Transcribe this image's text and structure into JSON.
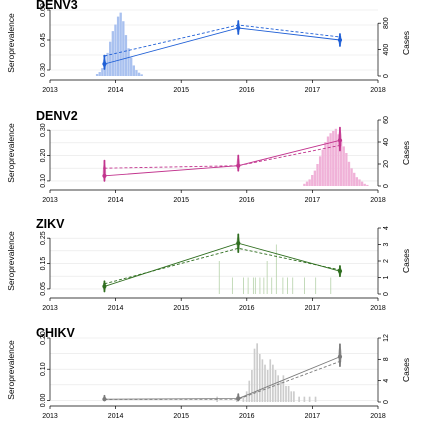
{
  "chart_data": [
    {
      "type": "line",
      "title": "DENV3",
      "ylabel": "Seroprevalence",
      "y2label": "Cases",
      "xlim": [
        2013,
        2018
      ],
      "xticks": [
        2013,
        2014,
        2015,
        2016,
        2017,
        2018
      ],
      "ylim": [
        0.27,
        0.6
      ],
      "yticks": [
        0.3,
        0.45,
        0.6
      ],
      "ytick_labels": [
        "0.30",
        "0.45",
        "0.60"
      ],
      "y2lim": [
        0,
        1000
      ],
      "y2ticks": [
        0,
        400,
        800
      ],
      "color": "#1f5fd6",
      "hist_color": "#a9c1ef",
      "grid": true,
      "series": [
        {
          "style": "solid",
          "x": [
            2013.83,
            2015.87,
            2017.42
          ],
          "y": [
            0.33,
            0.51,
            0.45
          ],
          "lower": [
            0.305,
            0.48,
            0.42
          ],
          "upper": [
            0.365,
            0.545,
            0.48
          ]
        },
        {
          "style": "dashed",
          "x": [
            2013.83,
            2015.87,
            2017.42
          ],
          "y": [
            0.37,
            0.525,
            0.465
          ]
        }
      ],
      "cases": {
        "bin_width": 0.04,
        "x": [
          2013.72,
          2013.76,
          2013.8,
          2013.84,
          2013.88,
          2013.92,
          2013.96,
          2014.0,
          2014.04,
          2014.08,
          2014.12,
          2014.16,
          2014.2,
          2014.24,
          2014.28,
          2014.32,
          2014.36,
          2014.4
        ],
        "y": [
          30,
          60,
          120,
          220,
          350,
          520,
          680,
          780,
          900,
          960,
          830,
          620,
          420,
          280,
          160,
          90,
          50,
          25
        ]
      }
    },
    {
      "type": "line",
      "title": "DENV2",
      "ylabel": "Seroprevalence",
      "y2label": "Cases",
      "xlim": [
        2013,
        2018
      ],
      "xticks": [
        2013,
        2014,
        2015,
        2016,
        2017,
        2018
      ],
      "ylim": [
        0.08,
        0.34
      ],
      "yticks": [
        0.1,
        0.2,
        0.3
      ],
      "ytick_labels": [
        "0.10",
        "0.20",
        "0.30"
      ],
      "y2lim": [
        0,
        60
      ],
      "y2ticks": [
        0,
        20,
        40,
        60
      ],
      "color": "#c2348e",
      "hist_color": "#f0b2d8",
      "grid": true,
      "series": [
        {
          "style": "solid",
          "x": [
            2013.83,
            2015.87,
            2017.42
          ],
          "y": [
            0.12,
            0.16,
            0.26
          ],
          "lower": [
            0.1,
            0.14,
            0.22
          ],
          "upper": [
            0.18,
            0.2,
            0.31
          ]
        },
        {
          "style": "dashed",
          "x": [
            2013.83,
            2015.87,
            2017.42
          ],
          "y": [
            0.15,
            0.16,
            0.24
          ]
        }
      ],
      "cases": {
        "bin_width": 0.04,
        "x": [
          2016.88,
          2016.92,
          2016.96,
          2017.0,
          2017.04,
          2017.08,
          2017.12,
          2017.16,
          2017.2,
          2017.24,
          2017.28,
          2017.32,
          2017.36,
          2017.4,
          2017.44,
          2017.48,
          2017.52,
          2017.56,
          2017.6,
          2017.64,
          2017.68,
          2017.72,
          2017.76,
          2017.8,
          2017.84
        ],
        "y": [
          2,
          4,
          6,
          10,
          14,
          20,
          27,
          33,
          40,
          45,
          48,
          50,
          52,
          47,
          42,
          36,
          30,
          22,
          16,
          12,
          8,
          6,
          4,
          2,
          1
        ]
      }
    },
    {
      "type": "line",
      "title": "ZIKV",
      "ylabel": "Seroprevalence",
      "y2label": "Cases",
      "xlim": [
        2013,
        2018
      ],
      "xticks": [
        2013,
        2014,
        2015,
        2016,
        2017,
        2018
      ],
      "ylim": [
        0.03,
        0.29
      ],
      "yticks": [
        0.05,
        0.15,
        0.25
      ],
      "ytick_labels": [
        "0.05",
        "0.15",
        "0.25"
      ],
      "y2lim": [
        0,
        4
      ],
      "y2ticks": [
        0,
        1,
        2,
        3,
        4
      ],
      "color": "#2f6e1f",
      "hist_color": "#b5d1a9",
      "grid": true,
      "series": [
        {
          "style": "solid",
          "x": [
            2013.83,
            2015.87,
            2017.42
          ],
          "y": [
            0.06,
            0.23,
            0.12
          ],
          "lower": [
            0.04,
            0.195,
            0.1
          ],
          "upper": [
            0.08,
            0.265,
            0.14
          ]
        },
        {
          "style": "dashed",
          "x": [
            2013.83,
            2015.87,
            2017.42
          ],
          "y": [
            0.07,
            0.21,
            0.125
          ]
        }
      ],
      "cases": {
        "bin_width": 0.012,
        "x": [
          2015.58,
          2015.78,
          2015.95,
          2016.02,
          2016.1,
          2016.13,
          2016.2,
          2016.26,
          2016.31,
          2016.38,
          2016.45,
          2016.55,
          2016.62,
          2016.7,
          2016.88,
          2017.05,
          2017.28
        ],
        "y": [
          2,
          1,
          1,
          1,
          1,
          1,
          1,
          1,
          2,
          1,
          3,
          1,
          1,
          1,
          1,
          1,
          1
        ]
      }
    },
    {
      "type": "line",
      "title": "CHIKV",
      "ylabel": "Seroprevalence",
      "y2label": "Cases",
      "xlim": [
        2013,
        2018
      ],
      "xticks": [
        2013,
        2014,
        2015,
        2016,
        2017,
        2018
      ],
      "ylim": [
        -0.005,
        0.2
      ],
      "yticks": [
        0.0,
        0.1,
        0.2
      ],
      "ytick_labels": [
        "0.00",
        "0.10",
        "0.20"
      ],
      "y2lim": [
        0,
        12
      ],
      "y2ticks": [
        0,
        4,
        8,
        12
      ],
      "color": "#7a7a7a",
      "hist_color": "#cccccc",
      "grid": true,
      "series": [
        {
          "style": "solid",
          "x": [
            2013.83,
            2015.87,
            2017.42
          ],
          "y": [
            0.004,
            0.006,
            0.14
          ],
          "lower": [
            0.0,
            0.0,
            0.11
          ],
          "upper": [
            0.015,
            0.02,
            0.18
          ]
        },
        {
          "style": "dashed",
          "x": [
            2013.83,
            2015.87,
            2017.42
          ],
          "y": [
            0.003,
            0.004,
            0.125
          ]
        }
      ],
      "cases": {
        "bin_width": 0.03,
        "x": [
          2015.55,
          2015.85,
          2015.95,
          2016.0,
          2016.04,
          2016.08,
          2016.12,
          2016.16,
          2016.2,
          2016.24,
          2016.28,
          2016.32,
          2016.36,
          2016.4,
          2016.44,
          2016.48,
          2016.52,
          2016.56,
          2016.6,
          2016.64,
          2016.68,
          2016.72,
          2016.8,
          2016.88,
          2016.96,
          2017.05
        ],
        "y": [
          1,
          1,
          1,
          2,
          4,
          6,
          10,
          11,
          9,
          8,
          7,
          6,
          8,
          7,
          6,
          5,
          4,
          5,
          3,
          3,
          2,
          2,
          1,
          1,
          1,
          1
        ]
      }
    }
  ]
}
